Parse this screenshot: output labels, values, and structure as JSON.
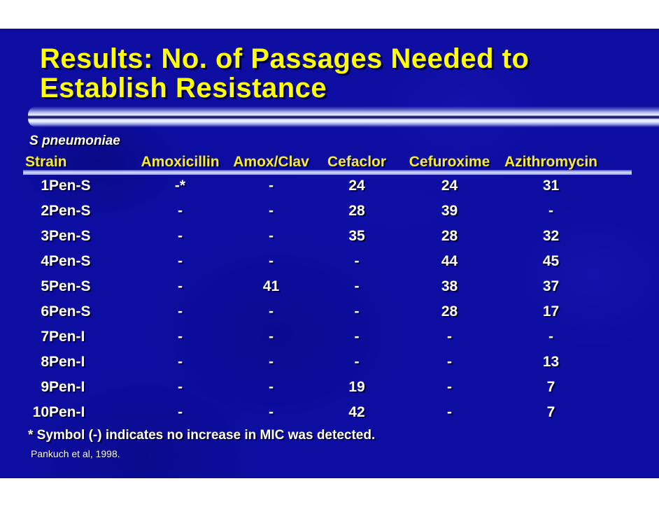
{
  "slide": {
    "title_line1": "Results: No. of Passages Needed to",
    "title_line2": "Establish Resistance",
    "subtitle": "S pneumoniae",
    "footnote": "* Symbol (-) indicates no increase in MIC was detected.",
    "citation": "Pankuch et al, 1998.",
    "colors": {
      "slide_background": "#0d0da1",
      "title_text": "#fdfd0c",
      "header_text": "#f7e93a",
      "body_text": "#ffffff",
      "divider_light": "#eef1ff",
      "divider_dark_core": "#151568"
    }
  },
  "table": {
    "strain_header": "Strain",
    "drug_headers": [
      "Amoxicillin",
      "Amox/Clav",
      "Cefaclor",
      "Cefuroxime",
      "Azithromycin"
    ],
    "rows": [
      {
        "num": "1",
        "strain": "Pen-S",
        "values": [
          "-*",
          "-",
          "24",
          "24",
          "31"
        ]
      },
      {
        "num": "2",
        "strain": "Pen-S",
        "values": [
          "-",
          "-",
          "28",
          "39",
          "-"
        ]
      },
      {
        "num": "3",
        "strain": "Pen-S",
        "values": [
          "-",
          "-",
          "35",
          "28",
          "32"
        ]
      },
      {
        "num": "4",
        "strain": "Pen-S",
        "values": [
          "-",
          "-",
          "-",
          "44",
          "45"
        ]
      },
      {
        "num": "5",
        "strain": "Pen-S",
        "values": [
          "-",
          "41",
          "-",
          "38",
          "37"
        ]
      },
      {
        "num": "6",
        "strain": "Pen-S",
        "values": [
          "-",
          "-",
          "-",
          "28",
          "17"
        ]
      },
      {
        "num": "7",
        "strain": "Pen-I",
        "values": [
          "-",
          "-",
          "-",
          "-",
          "-"
        ]
      },
      {
        "num": "8",
        "strain": "Pen-I",
        "values": [
          "-",
          "-",
          "-",
          "-",
          "13"
        ]
      },
      {
        "num": "9",
        "strain": "Pen-I",
        "values": [
          "-",
          "-",
          "19",
          "-",
          "7"
        ]
      },
      {
        "num": "10",
        "strain": "Pen-I",
        "values": [
          "-",
          "-",
          "42",
          "-",
          "7"
        ]
      }
    ]
  }
}
